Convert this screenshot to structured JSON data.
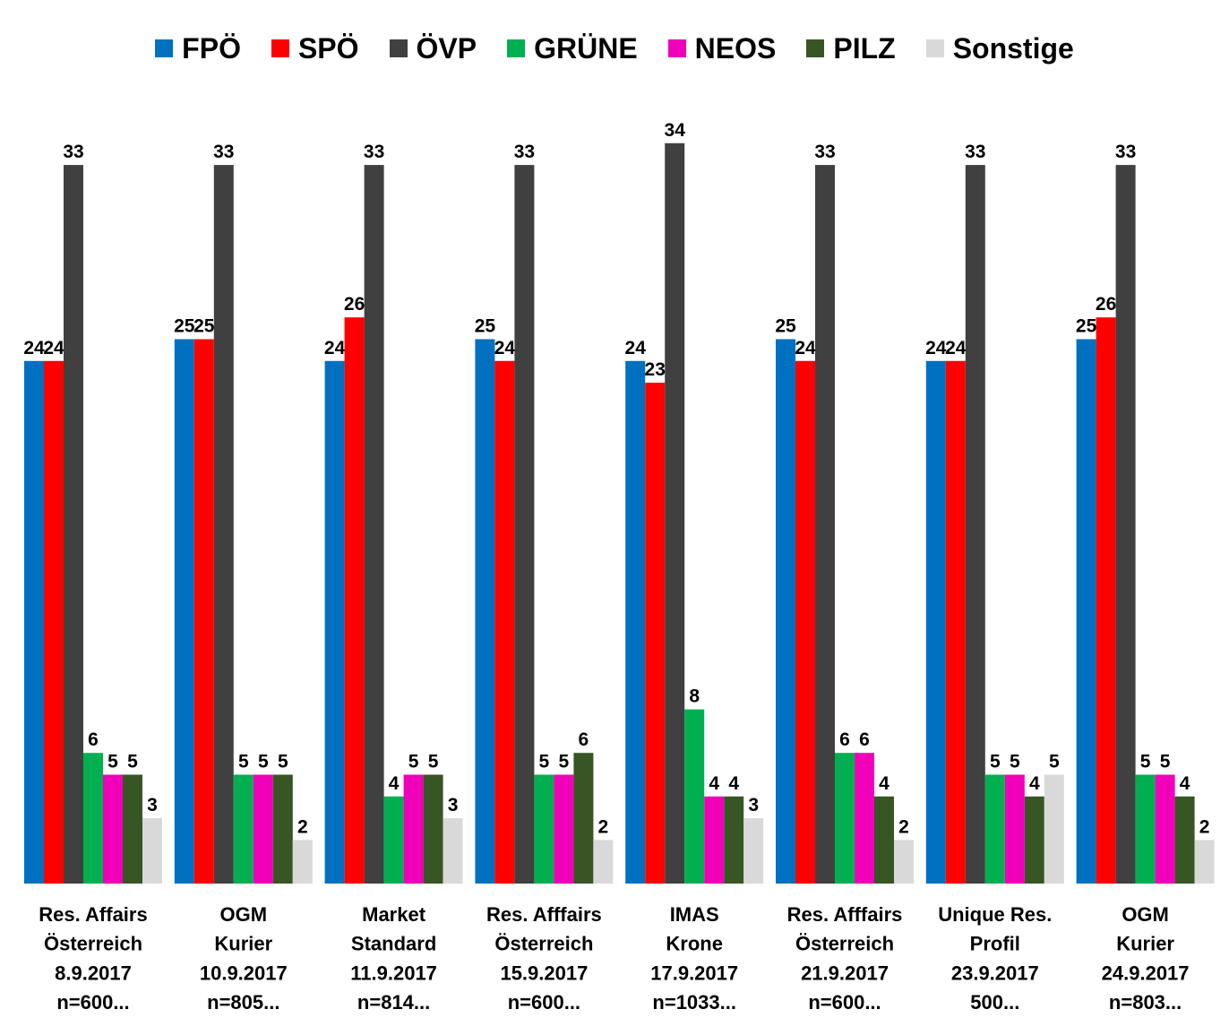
{
  "chart_data": {
    "type": "bar",
    "title": "",
    "xlabel": "",
    "ylabel": "",
    "ylim": [
      0,
      34
    ],
    "grid": false,
    "legend_position": "top",
    "categories": [
      [
        "Res. Affairs",
        "Österreich",
        "8.9.2017",
        "n=600..."
      ],
      [
        "OGM",
        "Kurier",
        "10.9.2017",
        "n=805..."
      ],
      [
        "Market",
        "Standard",
        "11.9.2017",
        "n=814..."
      ],
      [
        "Res. Afffairs",
        "Österreich",
        "15.9.2017",
        "n=600..."
      ],
      [
        "IMAS",
        "Krone",
        "17.9.2017",
        "n=1033..."
      ],
      [
        "Res. Afffairs",
        "Österreich",
        "21.9.2017",
        "n=600..."
      ],
      [
        "Unique Res.",
        "Profil",
        "23.9.2017",
        "500..."
      ],
      [
        "OGM",
        "Kurier",
        "24.9.2017",
        "n=803..."
      ]
    ],
    "series": [
      {
        "name": "FPÖ",
        "color": "#0070C0",
        "values": [
          24,
          25,
          24,
          25,
          24,
          25,
          24,
          25
        ]
      },
      {
        "name": "SPÖ",
        "color": "#FF0000",
        "values": [
          24,
          25,
          26,
          24,
          23,
          24,
          24,
          26
        ]
      },
      {
        "name": "ÖVP",
        "color": "#404040",
        "values": [
          33,
          33,
          33,
          33,
          34,
          33,
          33,
          33
        ]
      },
      {
        "name": "GRÜNE",
        "color": "#00B050",
        "values": [
          6,
          5,
          4,
          5,
          8,
          6,
          5,
          5
        ]
      },
      {
        "name": "NEOS",
        "color": "#F000B8",
        "values": [
          5,
          5,
          5,
          5,
          4,
          6,
          5,
          5
        ]
      },
      {
        "name": "PILZ",
        "color": "#375623",
        "values": [
          5,
          5,
          5,
          6,
          4,
          4,
          4,
          4
        ]
      },
      {
        "name": "Sonstige",
        "color": "#D9D9D9",
        "values": [
          3,
          2,
          3,
          2,
          3,
          2,
          5,
          2
        ]
      }
    ]
  }
}
